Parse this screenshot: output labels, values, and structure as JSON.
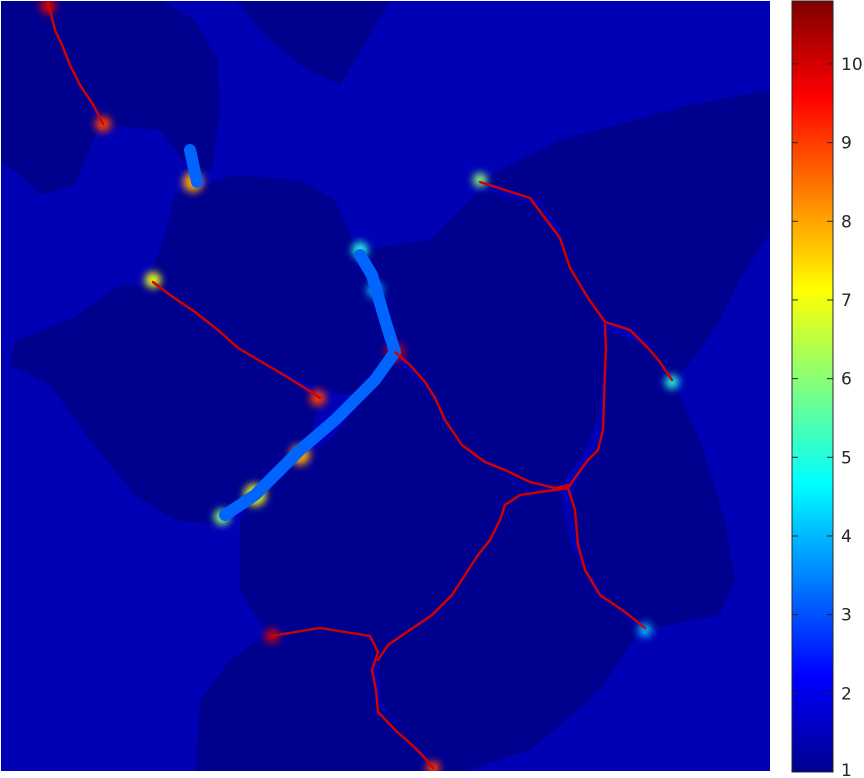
{
  "chart_data": {
    "type": "heatmap",
    "title": "",
    "xlabel": "",
    "ylabel": "",
    "colormap": "jet",
    "background_value": 1.4,
    "region_value": 1.0,
    "colorbar": {
      "range": [
        1,
        10.8
      ],
      "ticks": [
        1,
        2,
        3,
        4,
        5,
        6,
        7,
        8,
        9,
        10
      ],
      "tick_labels": [
        "1",
        "2",
        "3",
        "4",
        "5",
        "6",
        "7",
        "8",
        "9",
        "10"
      ],
      "position": "right"
    },
    "ridge_value": 10.0,
    "hotspot_values": [
      10,
      9,
      8,
      7,
      6,
      5,
      4
    ]
  }
}
